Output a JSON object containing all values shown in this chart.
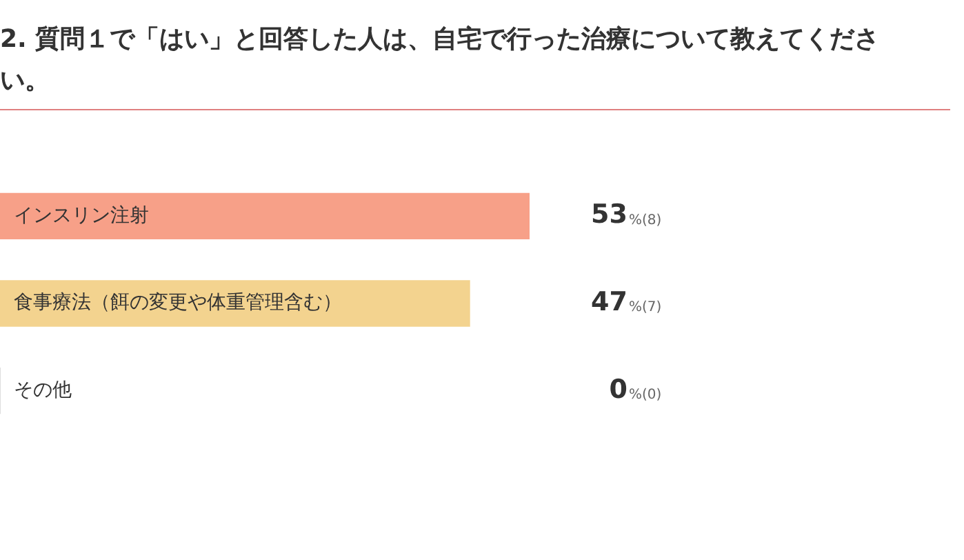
{
  "chart_data": {
    "type": "bar",
    "orientation": "horizontal",
    "title": "2. 質問１で「はい」と回答した人は、自宅で行った治療について教えてください。",
    "categories": [
      "インスリン注射",
      "食事療法（餌の変更や体重管理含む）",
      "その他"
    ],
    "values": [
      53,
      47,
      0
    ],
    "colors": [
      "#f7a088",
      "#f3d38f",
      "#cccccc"
    ],
    "value_labels": [
      "53%(8)",
      "47%(7)",
      "0%(0)"
    ],
    "legend": false
  }
}
